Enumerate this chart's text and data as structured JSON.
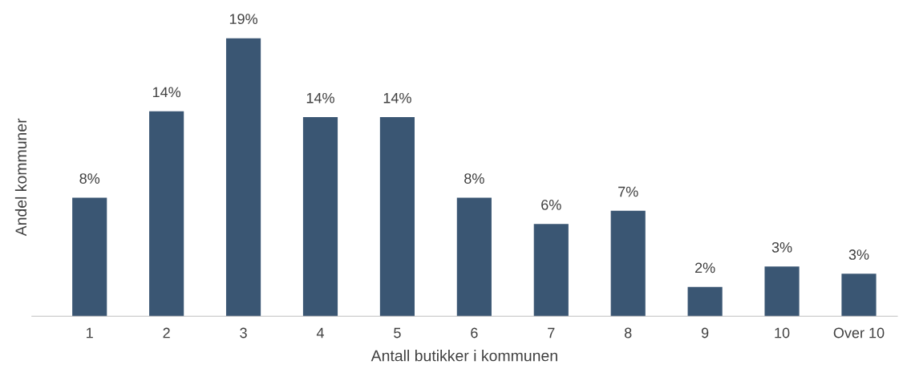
{
  "chart_data": {
    "type": "bar",
    "categories": [
      "1",
      "2",
      "3",
      "4",
      "5",
      "6",
      "7",
      "8",
      "9",
      "10",
      "Over 10"
    ],
    "values": [
      8.1,
      14.0,
      19.0,
      13.6,
      13.6,
      8.1,
      6.3,
      7.2,
      2.0,
      3.4,
      2.9
    ],
    "value_labels": [
      "8%",
      "14%",
      "19%",
      "14%",
      "14%",
      "8%",
      "6%",
      "7%",
      "2%",
      "3%",
      "3%"
    ],
    "color": "#3a5673",
    "xlabel": "Antall butikker i kommunen",
    "ylabel": "Andel kommuner",
    "tick_labels": "x",
    "grid": false,
    "legend": false
  }
}
